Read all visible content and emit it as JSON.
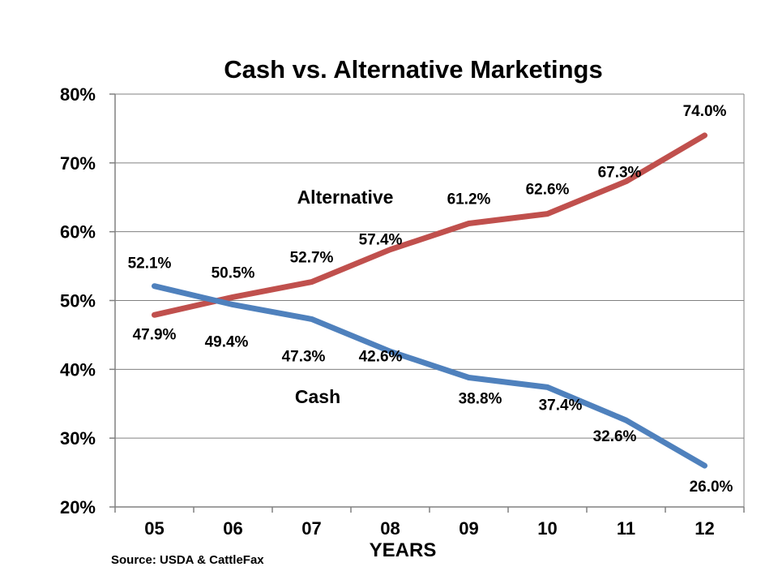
{
  "chart_data": {
    "type": "line",
    "title": "Cash vs. Alternative Marketings",
    "xlabel": "YEARS",
    "ylabel": "",
    "source": "Source: USDA & CattleFax",
    "categories": [
      "05",
      "06",
      "07",
      "08",
      "09",
      "10",
      "11",
      "12"
    ],
    "ylim": [
      20,
      80
    ],
    "yticks": [
      "20%",
      "30%",
      "40%",
      "50%",
      "60%",
      "70%",
      "80%"
    ],
    "grid": true,
    "series": [
      {
        "name": "Alternative",
        "color": "#c0504d",
        "values": [
          47.9,
          50.5,
          52.7,
          57.4,
          61.2,
          62.6,
          67.3,
          74.0
        ],
        "labels": [
          "47.9%",
          "50.5%",
          "52.7%",
          "57.4%",
          "61.2%",
          "62.6%",
          "67.3%",
          "74.0%"
        ]
      },
      {
        "name": "Cash",
        "color": "#4f81bd",
        "values": [
          52.1,
          49.4,
          47.3,
          42.6,
          38.8,
          37.4,
          32.6,
          26.0
        ],
        "labels": [
          "52.1%",
          "49.4%",
          "47.3%",
          "42.6%",
          "38.8%",
          "37.4%",
          "32.6%",
          "26.0%"
        ]
      }
    ]
  }
}
